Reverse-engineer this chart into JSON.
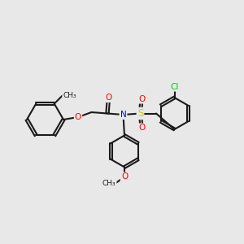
{
  "bg_color": "#e8e8e8",
  "bond_color": "#1a1a1a",
  "bond_width": 1.5,
  "atom_colors": {
    "O": "#ff0000",
    "N": "#0000ff",
    "S": "#cccc00",
    "Cl": "#00cc00",
    "C": "#1a1a1a"
  },
  "font_size": 7.5,
  "figsize": [
    3.0,
    3.0
  ],
  "dpi": 100
}
